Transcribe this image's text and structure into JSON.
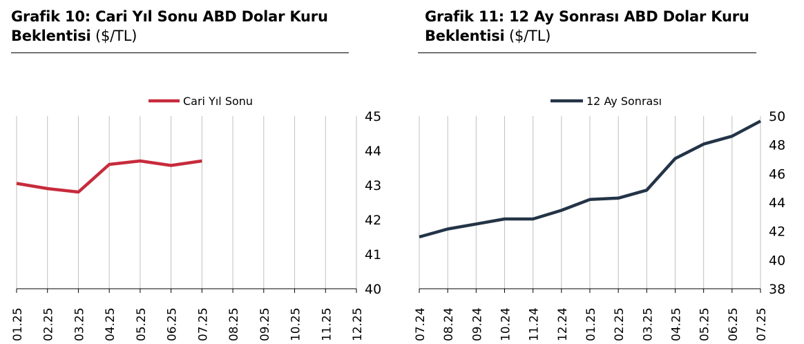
{
  "left_title": {
    "bold": "Grafik 10: Cari Yıl Sonu ABD Dolar Kuru",
    "bold2": "Beklentisi",
    "unit": "($/TL)"
  },
  "right_title": {
    "bold": "Grafik 11: 12 Ay Sonrası ABD Dolar Kuru",
    "bold2": "Beklentisi",
    "unit": "($/TL)"
  },
  "colors": {
    "left_series": "#c72b3c",
    "right_series": "#243447",
    "grid": "#bfbfbf",
    "axis": "#000000"
  },
  "chart_data": [
    {
      "type": "line",
      "categories": [
        "01.25",
        "02.25",
        "03.25",
        "04.25",
        "05.25",
        "06.25",
        "07.25",
        "08.25",
        "09.25",
        "10.25",
        "11.25",
        "12.25"
      ],
      "series": [
        {
          "name": "Cari Yıl Sonu",
          "values": [
            43.05,
            42.9,
            42.8,
            43.6,
            43.7,
            43.57,
            43.7,
            null,
            null,
            null,
            null,
            null
          ]
        }
      ],
      "ylim": [
        40,
        45
      ],
      "yticks": [
        40,
        41,
        42,
        43,
        44,
        45
      ],
      "yaxis_side": "right",
      "grid": "vertical",
      "legend_position": "top-center"
    },
    {
      "type": "line",
      "categories": [
        "07.24",
        "08.24",
        "09.24",
        "10.24",
        "11.24",
        "12.24",
        "01.25",
        "02.25",
        "03.25",
        "04.25",
        "05.25",
        "06.25",
        "07.25"
      ],
      "series": [
        {
          "name": "12 Ay Sonrası",
          "values": [
            41.6,
            42.15,
            42.5,
            42.85,
            42.85,
            43.45,
            44.2,
            44.3,
            44.85,
            47.05,
            48.05,
            48.6,
            49.65
          ]
        }
      ],
      "ylim": [
        38,
        50
      ],
      "yticks": [
        38,
        40,
        42,
        44,
        46,
        48,
        50
      ],
      "yaxis_side": "right",
      "grid": "vertical",
      "legend_position": "top-center"
    }
  ]
}
